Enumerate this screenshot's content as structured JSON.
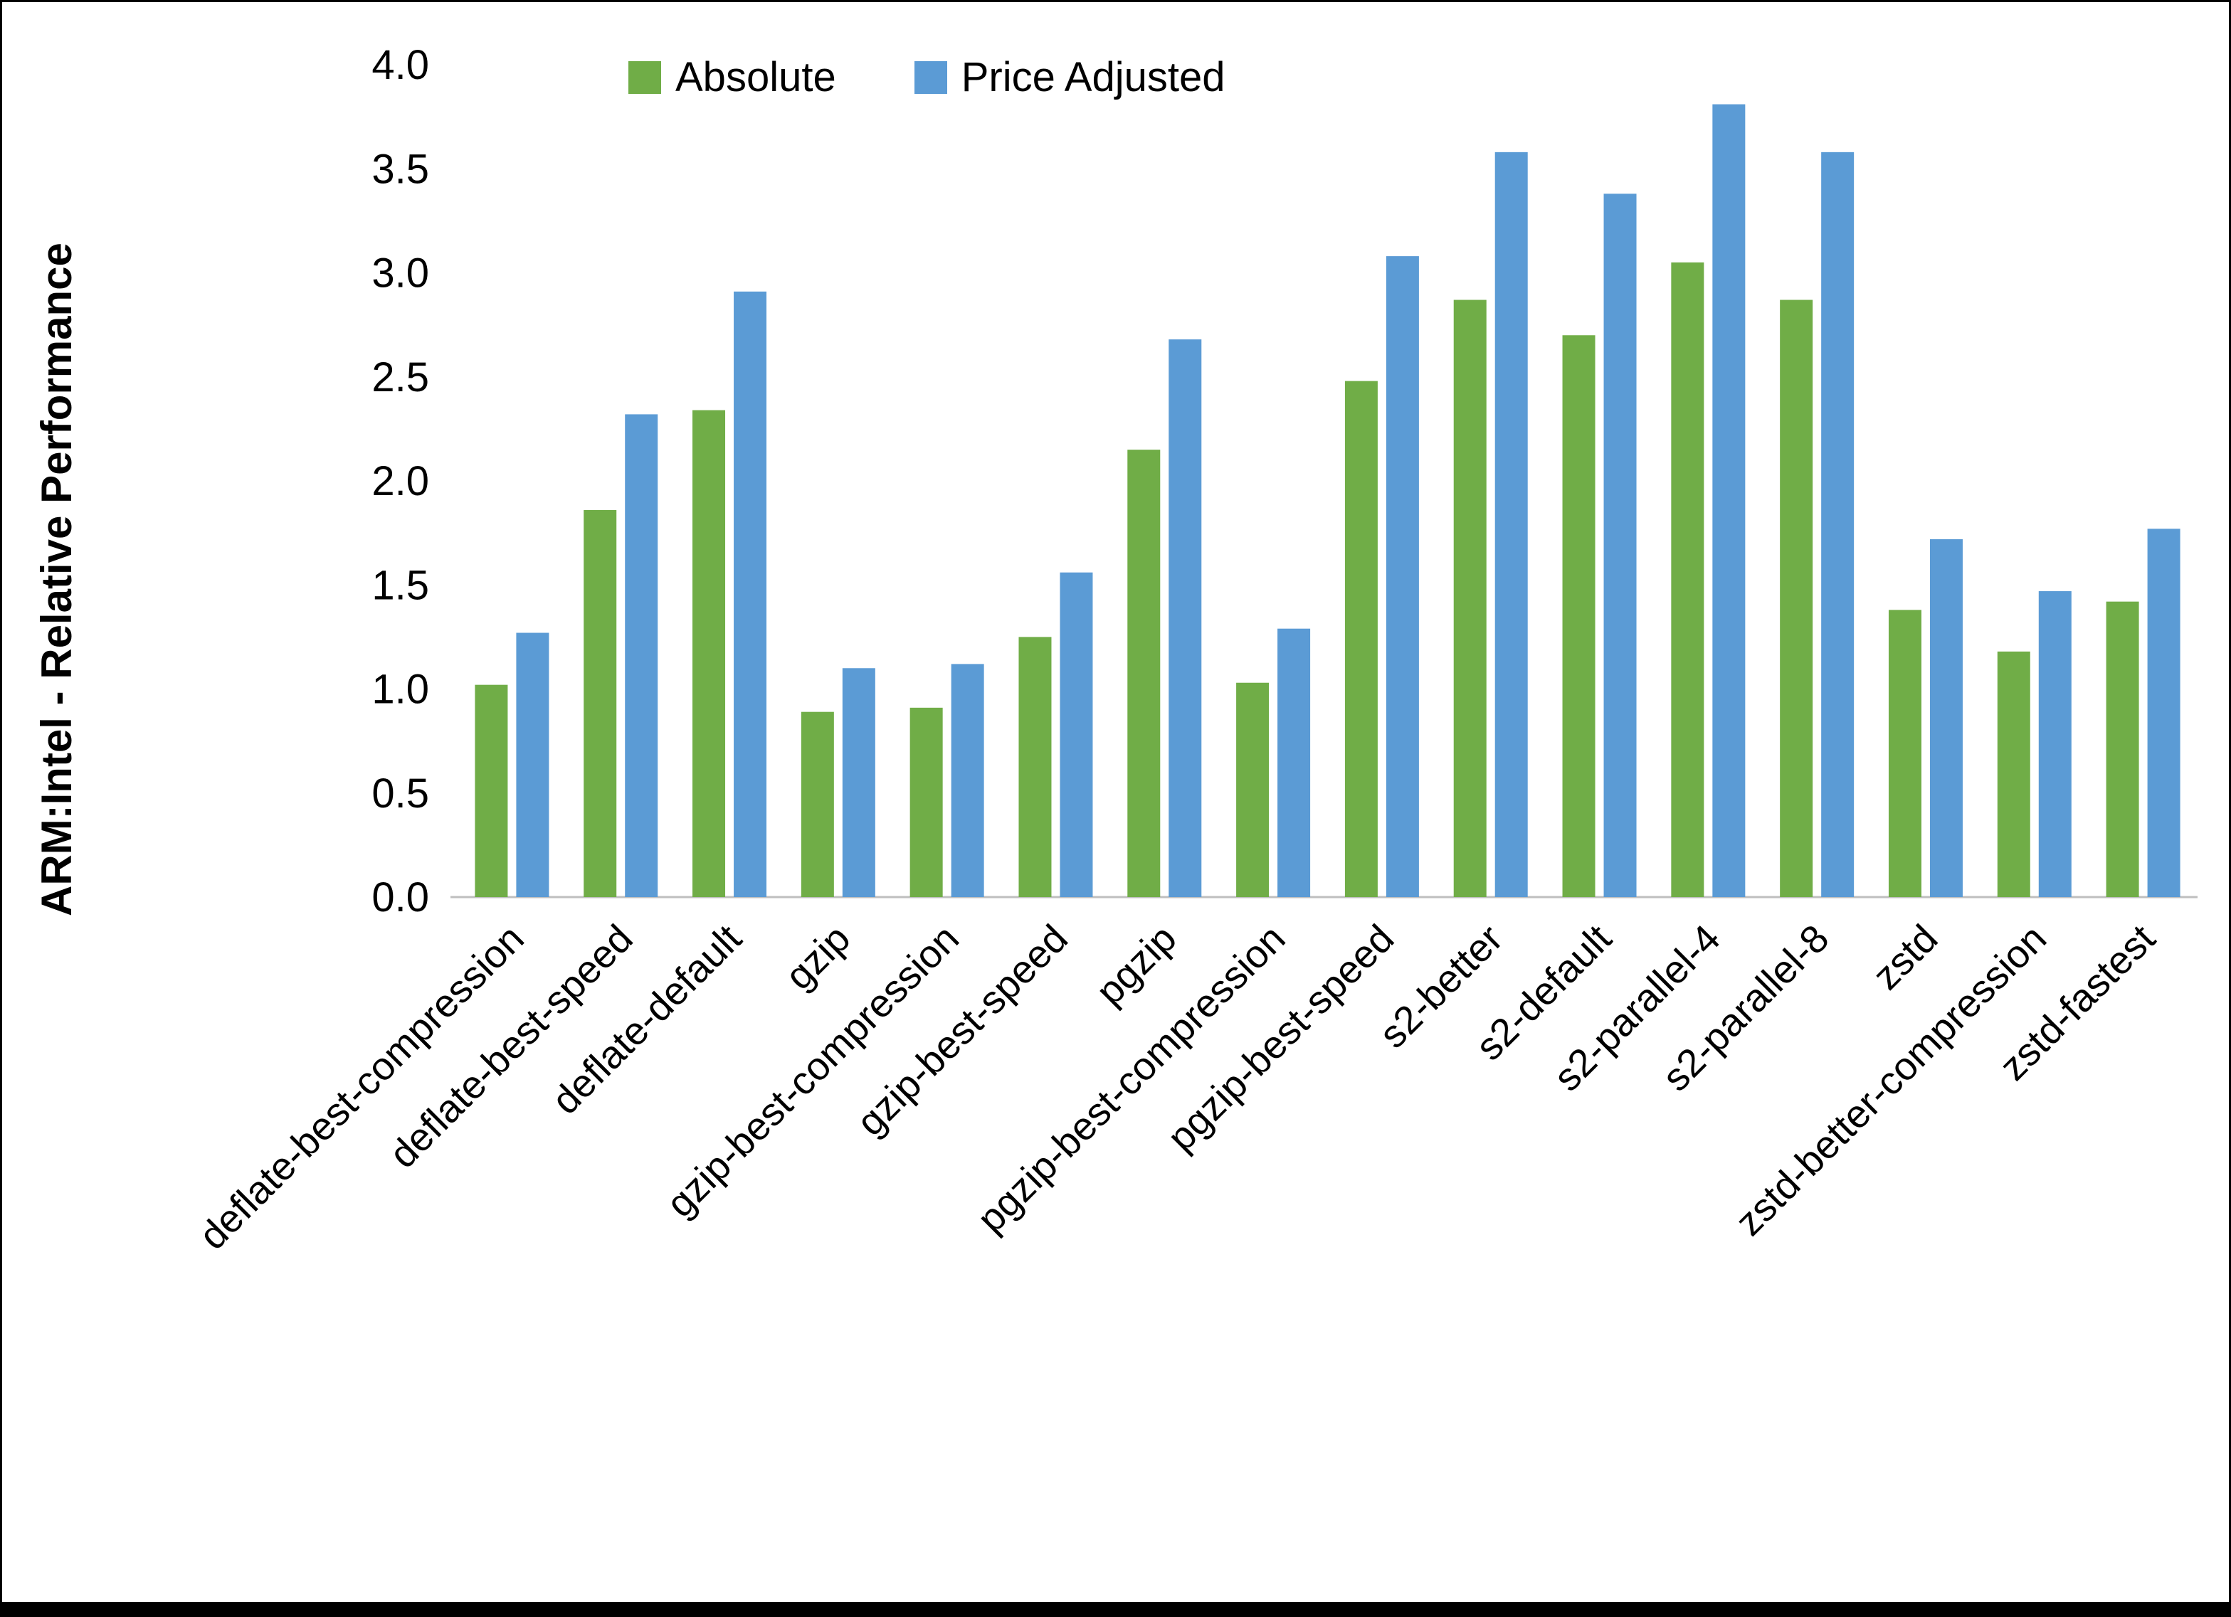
{
  "chart_data": {
    "type": "bar",
    "title": "",
    "xlabel": "",
    "ylabel": "ARM:Intel - Relative Performance",
    "ylim": [
      0.0,
      4.0
    ],
    "ytick_step": 0.5,
    "grid": false,
    "legend_position": "top",
    "categories": [
      "deflate-best-compression",
      "deflate-best-speed",
      "deflate-default",
      "gzip",
      "gzip-best-compression",
      "gzip-best-speed",
      "pgzip",
      "pgzip-best-compression",
      "pgzip-best-speed",
      "s2-better",
      "s2-default",
      "s2-parallel-4",
      "s2-parallel-8",
      "zstd",
      "zstd-better-compression",
      "zstd-fastest"
    ],
    "series": [
      {
        "name": "Absolute",
        "color": "#70AD47",
        "values": [
          1.02,
          1.86,
          2.34,
          0.89,
          0.91,
          1.25,
          2.15,
          1.03,
          2.48,
          2.87,
          2.7,
          3.05,
          2.87,
          1.38,
          1.18,
          1.42
        ]
      },
      {
        "name": "Price Adjusted",
        "color": "#5B9BD5",
        "values": [
          1.27,
          2.32,
          2.91,
          1.1,
          1.12,
          1.56,
          2.68,
          1.29,
          3.08,
          3.58,
          3.38,
          3.81,
          3.58,
          1.72,
          1.47,
          1.77
        ]
      }
    ],
    "axis_color": "#BFBFBF",
    "text_color": "#000000"
  },
  "page": {
    "background": "#FFFFFF",
    "border_color": "#000000"
  }
}
